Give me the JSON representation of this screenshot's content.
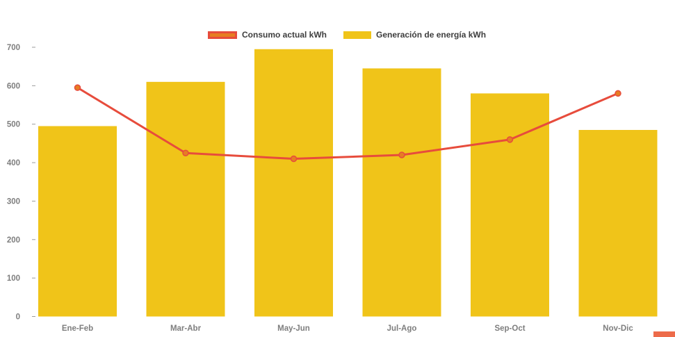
{
  "page": {
    "background": "#ffffff"
  },
  "legend": {
    "items": [
      {
        "label": "Consumo actual kWh",
        "series_type": "line",
        "swatch_fill": "#E67E22",
        "swatch_border": "#E74C3C"
      },
      {
        "label": "Generación de energía kWh",
        "series_type": "bar",
        "swatch_fill": "#F0C419"
      }
    ]
  },
  "chart_data": {
    "type": "bar",
    "subtype": "bar+line combo",
    "categories": [
      "Ene-Feb",
      "Mar-Abr",
      "May-Jun",
      "Jul-Ago",
      "Sep-Oct",
      "Nov-Dic"
    ],
    "series": [
      {
        "name": "Consumo actual kWh",
        "type": "line",
        "color": "#E74C3C",
        "point_fill": "#E67E22",
        "values": [
          595,
          425,
          410,
          420,
          460,
          580
        ]
      },
      {
        "name": "Generación de energía kWh",
        "type": "bar",
        "color": "#F0C419",
        "values": [
          495,
          610,
          695,
          645,
          580,
          485
        ]
      }
    ],
    "ylim": [
      0,
      700
    ],
    "y_ticks": [
      0,
      100,
      200,
      300,
      400,
      500,
      600,
      700
    ],
    "grid": false,
    "legend_position": "top",
    "axis_label_color": "#7E7E7E",
    "tick_mark_color": "#9B9B9B"
  },
  "accent": {
    "bottom_right_color": "#ED6B4A"
  }
}
